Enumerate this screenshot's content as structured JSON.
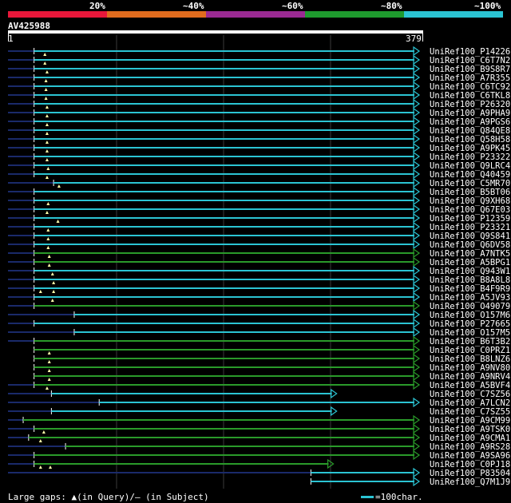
{
  "scale_labels": [
    "20%",
    "~40%",
    "~60%",
    "~80%",
    "~100%"
  ],
  "colors": {
    "bands": [
      "#e8173a",
      "#e06c1e",
      "#9a2a92",
      "#1e9a2e",
      "#2bc4d3"
    ],
    "cyan": "#2bc4d3",
    "green": "#2a9a2a",
    "dark_line": "#1a2a6a",
    "grid": "#3a3a3a",
    "marker": "#ffffaa"
  },
  "query": {
    "name": "AV425988",
    "start": "1",
    "end": "379",
    "length": 379
  },
  "footer": {
    "gaps_text": "Large gaps: ▲(in Query)/— (in Subject)",
    "legend_text": "=100char."
  },
  "hits": [
    {
      "id": "UniRef100_P14226",
      "s": 1,
      "a": 25,
      "b": 379,
      "c": "cyan",
      "m": [
        35
      ]
    },
    {
      "id": "UniRef100_C6T7N2",
      "s": 1,
      "a": 25,
      "b": 379,
      "c": "cyan",
      "m": [
        35
      ]
    },
    {
      "id": "UniRef100_B9S8R7",
      "s": 1,
      "a": 25,
      "b": 379,
      "c": "cyan",
      "m": [
        37
      ]
    },
    {
      "id": "UniRef100_A7R355",
      "s": 1,
      "a": 25,
      "b": 379,
      "c": "cyan",
      "m": [
        36
      ]
    },
    {
      "id": "UniRef100_C6TC92",
      "s": 1,
      "a": 25,
      "b": 379,
      "c": "cyan",
      "m": [
        36
      ]
    },
    {
      "id": "UniRef100_C6TKL8",
      "s": 1,
      "a": 25,
      "b": 379,
      "c": "cyan",
      "m": [
        36
      ]
    },
    {
      "id": "UniRef100_P26320",
      "s": 1,
      "a": 25,
      "b": 379,
      "c": "cyan",
      "m": [
        37
      ]
    },
    {
      "id": "UniRef100_A9PHA9",
      "s": 1,
      "a": 25,
      "b": 379,
      "c": "cyan",
      "m": [
        37
      ]
    },
    {
      "id": "UniRef100_A9PGS6",
      "s": 1,
      "a": 25,
      "b": 379,
      "c": "cyan",
      "m": [
        37
      ]
    },
    {
      "id": "UniRef100_Q84QE8",
      "s": 1,
      "a": 25,
      "b": 379,
      "c": "cyan",
      "m": [
        37
      ]
    },
    {
      "id": "UniRef100_Q58H58",
      "s": 1,
      "a": 25,
      "b": 379,
      "c": "cyan",
      "m": [
        37
      ]
    },
    {
      "id": "UniRef100_A9PK45",
      "s": 1,
      "a": 25,
      "b": 379,
      "c": "cyan",
      "m": [
        37
      ]
    },
    {
      "id": "UniRef100_P23322",
      "s": 1,
      "a": 25,
      "b": 379,
      "c": "cyan",
      "m": [
        37
      ]
    },
    {
      "id": "UniRef100_Q9LRC4",
      "s": 1,
      "a": 25,
      "b": 379,
      "c": "cyan",
      "m": [
        38
      ]
    },
    {
      "id": "UniRef100_Q40459",
      "s": 1,
      "a": 25,
      "b": 379,
      "c": "cyan",
      "m": [
        37
      ]
    },
    {
      "id": "UniRef100_C5MR70",
      "s": 1,
      "a": 43,
      "b": 379,
      "c": "cyan",
      "m": [
        48
      ]
    },
    {
      "id": "UniRef100_B5BT06",
      "s": 1,
      "a": 25,
      "b": 379,
      "c": "cyan",
      "m": []
    },
    {
      "id": "UniRef100_Q9XH68",
      "s": 1,
      "a": 25,
      "b": 379,
      "c": "cyan",
      "m": [
        38
      ]
    },
    {
      "id": "UniRef100_Q67E03",
      "s": 1,
      "a": 25,
      "b": 379,
      "c": "cyan",
      "m": [
        37
      ]
    },
    {
      "id": "UniRef100_P12359",
      "s": 1,
      "a": 25,
      "b": 379,
      "c": "cyan",
      "m": [
        47
      ]
    },
    {
      "id": "UniRef100_P23321",
      "s": 1,
      "a": 25,
      "b": 379,
      "c": "cyan",
      "m": [
        38
      ]
    },
    {
      "id": "UniRef100_Q9S841",
      "s": 1,
      "a": 25,
      "b": 379,
      "c": "cyan",
      "m": [
        38
      ]
    },
    {
      "id": "UniRef100_Q6DV58",
      "s": 1,
      "a": 25,
      "b": 379,
      "c": "cyan",
      "m": [
        38
      ]
    },
    {
      "id": "UniRef100_A7NTK5",
      "s": 1,
      "a": 25,
      "b": 379,
      "c": "green",
      "m": [
        39
      ]
    },
    {
      "id": "UniRef100_A5BPG1",
      "s": 1,
      "a": 25,
      "b": 379,
      "c": "green",
      "m": [
        39
      ]
    },
    {
      "id": "UniRef100_Q943W1",
      "s": 1,
      "a": 25,
      "b": 379,
      "c": "cyan",
      "m": [
        42
      ]
    },
    {
      "id": "UniRef100_B8A8L8",
      "s": 1,
      "a": 25,
      "b": 379,
      "c": "cyan",
      "m": [
        43
      ]
    },
    {
      "id": "UniRef100_B4F9R9",
      "s": 1,
      "a": 25,
      "b": 379,
      "c": "cyan",
      "m": [
        31,
        43
      ]
    },
    {
      "id": "UniRef100_A5JV93",
      "s": 1,
      "a": 25,
      "b": 379,
      "c": "cyan",
      "m": [
        42
      ]
    },
    {
      "id": "UniRef100_O49079",
      "s": 1,
      "a": 25,
      "b": 379,
      "c": "green",
      "m": []
    },
    {
      "id": "UniRef100_O157M6",
      "s": 1,
      "a": 62,
      "b": 379,
      "c": "cyan",
      "m": []
    },
    {
      "id": "UniRef100_P27665",
      "s": 1,
      "a": 25,
      "b": 379,
      "c": "cyan",
      "m": []
    },
    {
      "id": "UniRef100_O157M5",
      "s": 1,
      "a": 62,
      "b": 379,
      "c": "cyan",
      "m": []
    },
    {
      "id": "UniRef100_B6T3B2",
      "s": 1,
      "a": 25,
      "b": 379,
      "c": "green",
      "m": []
    },
    {
      "id": "UniRef100_C0PRZ1",
      "s": 25,
      "a": 25,
      "b": 379,
      "c": "green",
      "m": [
        39
      ]
    },
    {
      "id": "UniRef100_B8LNZ6",
      "s": 25,
      "a": 25,
      "b": 379,
      "c": "green",
      "m": [
        39
      ]
    },
    {
      "id": "UniRef100_A9NV80",
      "s": 25,
      "a": 25,
      "b": 379,
      "c": "green",
      "m": [
        39
      ]
    },
    {
      "id": "UniRef100_A9NRV4",
      "s": 25,
      "a": 25,
      "b": 379,
      "c": "green",
      "m": [
        39
      ]
    },
    {
      "id": "UniRef100_A5BVF4",
      "s": 1,
      "a": 25,
      "b": 379,
      "c": "green",
      "m": [
        37
      ]
    },
    {
      "id": "UniRef100_C7SZ56",
      "s": 1,
      "a": 41,
      "b": 303,
      "c": "cyan",
      "m": []
    },
    {
      "id": "UniRef100_A7LCN2",
      "s": 1,
      "a": 85,
      "b": 379,
      "c": "cyan",
      "m": []
    },
    {
      "id": "UniRef100_C7SZ55",
      "s": 1,
      "a": 41,
      "b": 303,
      "c": "cyan",
      "m": []
    },
    {
      "id": "UniRef100_A9CM99",
      "s": 1,
      "a": 15,
      "b": 379,
      "c": "green",
      "m": []
    },
    {
      "id": "UniRef100_A9TSK0",
      "s": 1,
      "a": 25,
      "b": 379,
      "c": "green",
      "m": [
        34
      ]
    },
    {
      "id": "UniRef100_A9CMA1",
      "s": 1,
      "a": 20,
      "b": 379,
      "c": "green",
      "m": [
        31
      ]
    },
    {
      "id": "UniRef100_A9RS28",
      "s": 1,
      "a": 54,
      "b": 379,
      "c": "green",
      "m": []
    },
    {
      "id": "UniRef100_A9SA96",
      "s": 1,
      "a": 25,
      "b": 379,
      "c": "green",
      "m": []
    },
    {
      "id": "UniRef100_C0PJ18",
      "s": 1,
      "a": 25,
      "b": 300,
      "c": "green",
      "m": [
        31,
        40
      ]
    },
    {
      "id": "UniRef100_P83504",
      "s": 1,
      "a": 280,
      "b": 379,
      "c": "cyan",
      "m": []
    },
    {
      "id": "UniRef100_Q7M1J9",
      "s": 280,
      "a": 280,
      "b": 379,
      "c": "cyan",
      "m": []
    }
  ]
}
